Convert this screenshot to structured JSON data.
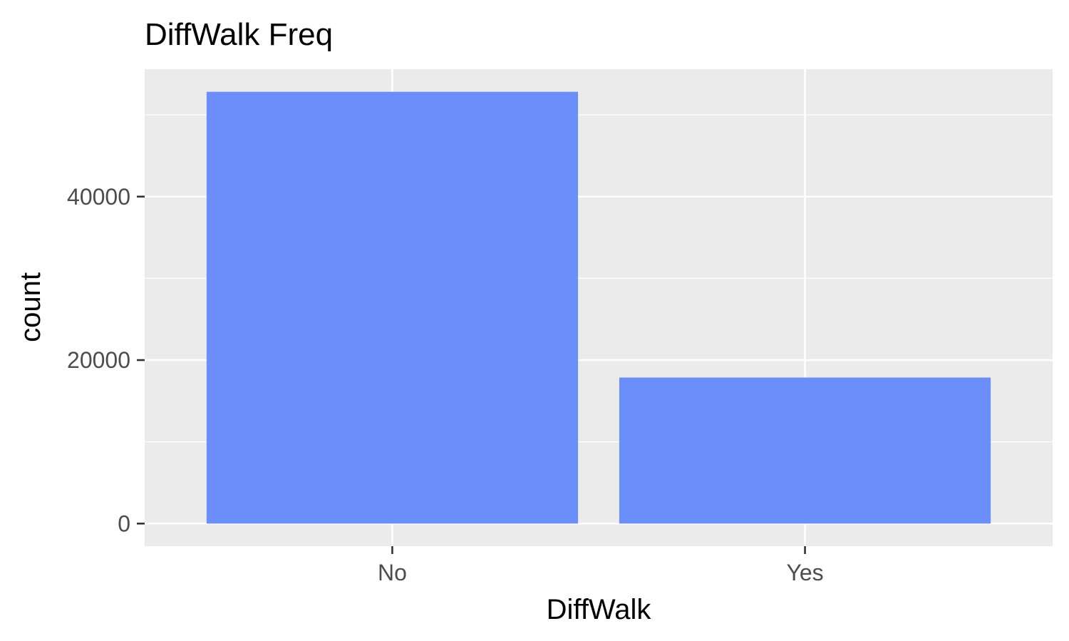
{
  "chart_data": {
    "type": "bar",
    "title": "DiffWalk Freq",
    "xlabel": "DiffWalk",
    "ylabel": "count",
    "categories": [
      "No",
      "Yes"
    ],
    "values": [
      52826,
      17866
    ],
    "ylim": [
      -2766,
      55594
    ],
    "yticks": [
      0,
      20000,
      40000
    ],
    "ytick_labels": [
      "0",
      "20000",
      "40000"
    ],
    "grid": true,
    "legend": "none",
    "colors": {
      "bar": "#6b8ffa",
      "panel": "#ebebeb",
      "grid": "#ffffff",
      "tick_label": "#4d4d4d",
      "tick_mark": "#333333"
    }
  }
}
